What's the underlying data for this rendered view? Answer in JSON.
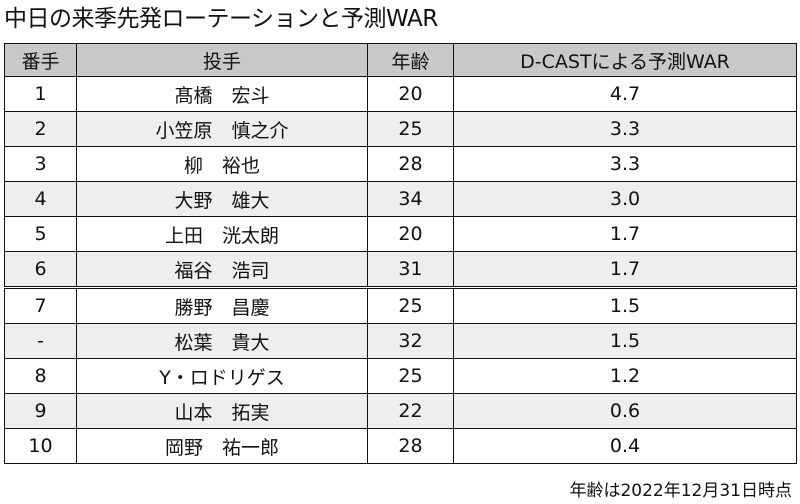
{
  "title": "中日の来季先発ローテーションと予測WAR",
  "table": {
    "headers": [
      "番手",
      "投手",
      "年齢",
      "D-CASTによる予測WAR"
    ],
    "rows": [
      {
        "rank": "1",
        "pitcher": "髙橋　宏斗",
        "age": "20",
        "war": "4.7"
      },
      {
        "rank": "2",
        "pitcher": "小笠原　慎之介",
        "age": "25",
        "war": "3.3"
      },
      {
        "rank": "3",
        "pitcher": "柳　裕也",
        "age": "28",
        "war": "3.3"
      },
      {
        "rank": "4",
        "pitcher": "大野　雄大",
        "age": "34",
        "war": "3.0"
      },
      {
        "rank": "5",
        "pitcher": "上田　洸太朗",
        "age": "20",
        "war": "1.7"
      },
      {
        "rank": "6",
        "pitcher": "福谷　浩司",
        "age": "31",
        "war": "1.7"
      },
      {
        "rank": "7",
        "pitcher": "勝野　昌慶",
        "age": "25",
        "war": "1.5"
      },
      {
        "rank": "-",
        "pitcher": "松葉　貴大",
        "age": "32",
        "war": "1.5"
      },
      {
        "rank": "8",
        "pitcher": "Y・ロドリゲス",
        "age": "25",
        "war": "1.2"
      },
      {
        "rank": "9",
        "pitcher": "山本　拓実",
        "age": "22",
        "war": "0.6"
      },
      {
        "rank": "10",
        "pitcher": "岡野　祐一郎",
        "age": "28",
        "war": "0.4"
      }
    ]
  },
  "note": "年齢は2022年12月31日時点",
  "colors": {
    "header_bg": "#c9c9c9",
    "alt_row_bg": "#eeeeee",
    "border": "#111111"
  }
}
